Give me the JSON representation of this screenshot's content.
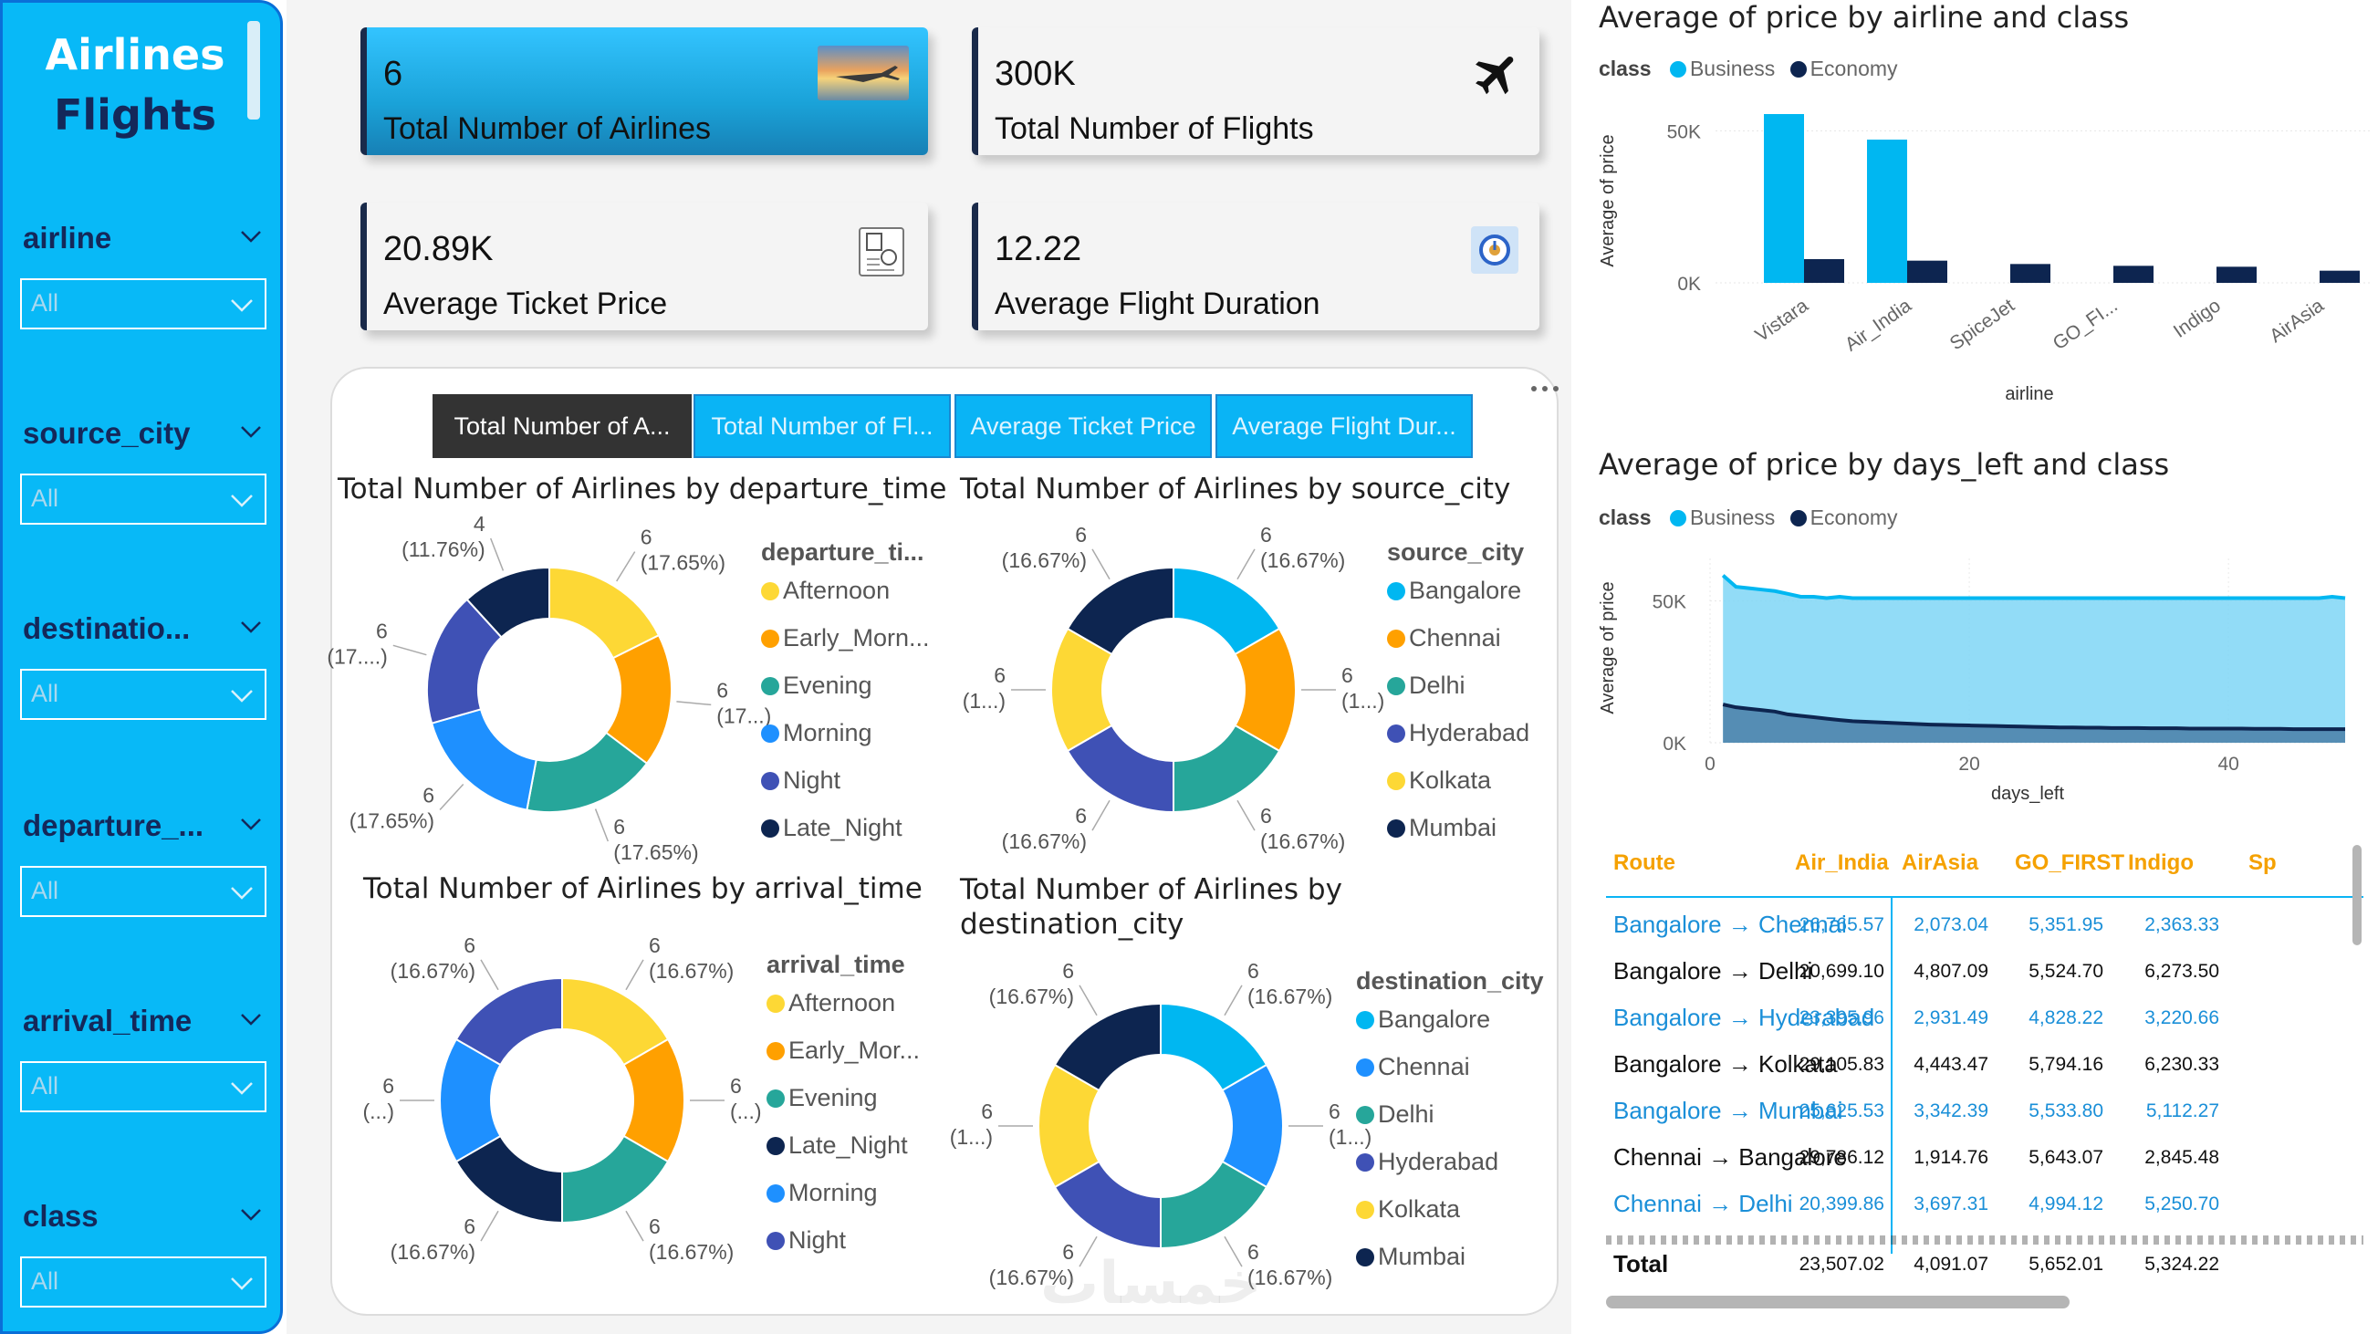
{
  "sidebar": {
    "title_line1": "Airlines",
    "title_line2": "Flights",
    "slicers": [
      {
        "label": "airline",
        "value": "All"
      },
      {
        "label": "source_city",
        "value": "All"
      },
      {
        "label": "destinatio...",
        "value": "All"
      },
      {
        "label": "departure_...",
        "value": "All"
      },
      {
        "label": "arrival_time",
        "value": "All"
      },
      {
        "label": "class",
        "value": "All"
      }
    ]
  },
  "cards": {
    "airlines": {
      "value": "6",
      "label": "Total Number of Airlines",
      "icon": "airplane-sunset-photo"
    },
    "flights": {
      "value": "300K",
      "label": "Total Number of Flights",
      "icon": "airplane-icon"
    },
    "price": {
      "value": "20.89K",
      "label": "Average Ticket Price",
      "icon": "ticket-icon"
    },
    "duration": {
      "value": "12.22",
      "label": "Average Flight Duration",
      "icon": "clock-icon"
    }
  },
  "tabs": [
    "Total Number of A...",
    "Total Number of Fl...",
    "Average Ticket Price",
    "Average Flight Dur..."
  ],
  "donuts": {
    "departure": {
      "title": "Total Number of Airlines by departure_time",
      "legend_title": "departure_ti...",
      "legend": [
        "Afternoon",
        "Early_Morn...",
        "Evening",
        "Morning",
        "Night",
        "Late_Night"
      ],
      "labels": [
        {
          "n": "6",
          "p": "(17.65%)"
        },
        {
          "n": "6",
          "p": "(17...)"
        },
        {
          "n": "6",
          "p": "(17.65%)"
        },
        {
          "n": "6",
          "p": "(17.65%)"
        },
        {
          "n": "6",
          "p": "(17....)"
        },
        {
          "n": "4",
          "p": "(11.76%)"
        }
      ]
    },
    "source": {
      "title": "Total Number of Airlines by source_city",
      "legend_title": "source_city",
      "legend": [
        "Bangalore",
        "Chennai",
        "Delhi",
        "Hyderabad",
        "Kolkata",
        "Mumbai"
      ],
      "labels": [
        {
          "n": "6",
          "p": "(16.67%)"
        },
        {
          "n": "6",
          "p": "(1...)"
        },
        {
          "n": "6",
          "p": "(16.67%)"
        },
        {
          "n": "6",
          "p": "(16.67%)"
        },
        {
          "n": "6",
          "p": "(1...)"
        },
        {
          "n": "6",
          "p": "(16.67%)"
        }
      ]
    },
    "arrival": {
      "title": "Total Number of Airlines by arrival_time",
      "legend_title": "arrival_time",
      "legend": [
        "Afternoon",
        "Early_Mor...",
        "Evening",
        "Late_Night",
        "Morning",
        "Night"
      ],
      "labels": [
        {
          "n": "6",
          "p": "(16.67%)"
        },
        {
          "n": "6",
          "p": "(...)"
        },
        {
          "n": "6",
          "p": "(16.67%)"
        },
        {
          "n": "6",
          "p": "(16.67%)"
        },
        {
          "n": "6",
          "p": "(...)"
        },
        {
          "n": "6",
          "p": "(16.67%)"
        }
      ]
    },
    "destination": {
      "title_line1": "Total Number of Airlines by",
      "title_line2": "destination_city",
      "legend_title": "destination_city",
      "legend": [
        "Bangalore",
        "Chennai",
        "Delhi",
        "Hyderabad",
        "Kolkata",
        "Mumbai"
      ],
      "labels": [
        {
          "n": "6",
          "p": "(16.67%)"
        },
        {
          "n": "6",
          "p": "(1...)"
        },
        {
          "n": "6",
          "p": "(16.67%)"
        },
        {
          "n": "6",
          "p": "(16.67%)"
        },
        {
          "n": "6",
          "p": "(1...)"
        },
        {
          "n": "6",
          "p": "(16.67%)"
        }
      ]
    }
  },
  "colors": {
    "yellow": "#fdd835",
    "orange": "#ffa000",
    "teal": "#26a69a",
    "sky": "#1e90ff",
    "indigo": "#3f51b5",
    "navy": "#0d2550",
    "cyan": "#00b7f1",
    "sidebar": "#08b9f7",
    "accent_orange": "#f5a100"
  },
  "bar_chart": {
    "title": "Average of price by airline and class",
    "legend_label": "class",
    "xlabel": "airline",
    "ylabel": "Average of price",
    "yticks": [
      "50K",
      "0K"
    ]
  },
  "area_chart": {
    "title": "Average of price by days_left and class",
    "legend_label": "class",
    "xlabel": "days_left",
    "ylabel": "Average of price",
    "yticks": [
      "50K",
      "0K"
    ],
    "xticks": [
      "0",
      "20",
      "40"
    ]
  },
  "chart_data": [
    {
      "type": "bar",
      "title": "Average of price by airline and class",
      "xlabel": "airline",
      "ylabel": "Average of price",
      "categories": [
        "Vistara",
        "Air_India",
        "SpiceJet",
        "GO_FI...",
        "Indigo",
        "AirAsia"
      ],
      "series": [
        {
          "name": "Business",
          "values": [
            55500,
            47100,
            0,
            0,
            0,
            0
          ]
        },
        {
          "name": "Economy",
          "values": [
            7800,
            7300,
            6200,
            5600,
            5300,
            4000
          ]
        }
      ],
      "ylim": [
        0,
        60000
      ],
      "legend": "top-left"
    },
    {
      "type": "area",
      "title": "Average of price by days_left and class",
      "xlabel": "days_left",
      "ylabel": "Average of price",
      "x": [
        1,
        2,
        3,
        4,
        5,
        6,
        7,
        8,
        9,
        10,
        11,
        12,
        13,
        14,
        15,
        16,
        17,
        18,
        19,
        20,
        21,
        22,
        23,
        24,
        25,
        26,
        27,
        28,
        29,
        30,
        31,
        32,
        33,
        34,
        35,
        36,
        37,
        38,
        39,
        40,
        41,
        42,
        43,
        44,
        45,
        46,
        47,
        48,
        49
      ],
      "series": [
        {
          "name": "Business",
          "values": [
            59000,
            55000,
            54500,
            54000,
            53500,
            52500,
            51500,
            51500,
            51000,
            51500,
            51000,
            51000,
            51000,
            51000,
            51000,
            51000,
            51000,
            51000,
            51000,
            51000,
            51000,
            51000,
            51000,
            51000,
            51000,
            51000,
            51000,
            51000,
            51000,
            51000,
            51000,
            51000,
            51000,
            51000,
            51000,
            51000,
            51000,
            51000,
            51000,
            51000,
            51000,
            51000,
            51000,
            51000,
            51000,
            51000,
            51000,
            51500,
            51000
          ]
        },
        {
          "name": "Economy",
          "values": [
            13500,
            12500,
            12000,
            11500,
            11000,
            10000,
            9500,
            9000,
            8500,
            8000,
            7600,
            7400,
            7200,
            7000,
            6800,
            6600,
            6400,
            6300,
            6200,
            6100,
            6000,
            5900,
            5800,
            5700,
            5600,
            5500,
            5400,
            5400,
            5300,
            5300,
            5200,
            5200,
            5200,
            5100,
            5100,
            5100,
            5000,
            5000,
            5000,
            5000,
            5000,
            4900,
            4900,
            4900,
            4800,
            4800,
            4800,
            4800,
            4800
          ]
        }
      ],
      "ylim": [
        0,
        65000
      ],
      "xlim": [
        0,
        49
      ],
      "legend": "top-left"
    },
    {
      "type": "table",
      "columns": [
        "Route",
        "Air_India",
        "AirAsia",
        "GO_FIRST",
        "Indigo",
        "Sp"
      ],
      "rows": [
        {
          "route": "Bangalore → Chennai",
          "values": [
            "26,765.57",
            "2,073.04",
            "5,351.95",
            "2,363.33"
          ]
        },
        {
          "route": "Bangalore → Delhi",
          "values": [
            "20,699.10",
            "4,807.09",
            "5,524.70",
            "6,273.50"
          ]
        },
        {
          "route": "Bangalore → Hyderabad",
          "values": [
            "23,395.96",
            "2,931.49",
            "4,828.22",
            "3,220.66"
          ]
        },
        {
          "route": "Bangalore → Kolkata",
          "values": [
            "29,105.83",
            "4,443.47",
            "5,794.16",
            "6,230.33"
          ]
        },
        {
          "route": "Bangalore → Mumbai",
          "values": [
            "25,625.53",
            "3,342.39",
            "5,533.80",
            "5,112.27"
          ]
        },
        {
          "route": "Chennai → Bangalore",
          "values": [
            "29,786.12",
            "1,914.76",
            "5,643.07",
            "2,845.48"
          ]
        },
        {
          "route": "Chennai → Delhi",
          "values": [
            "20,399.86",
            "3,697.31",
            "4,994.12",
            "5,250.70"
          ]
        }
      ],
      "total": {
        "label": "Total",
        "values": [
          "23,507.02",
          "4,091.07",
          "5,652.01",
          "5,324.22"
        ]
      }
    }
  ],
  "legend_series": [
    "Business",
    "Economy"
  ],
  "watermark": "خمسات"
}
